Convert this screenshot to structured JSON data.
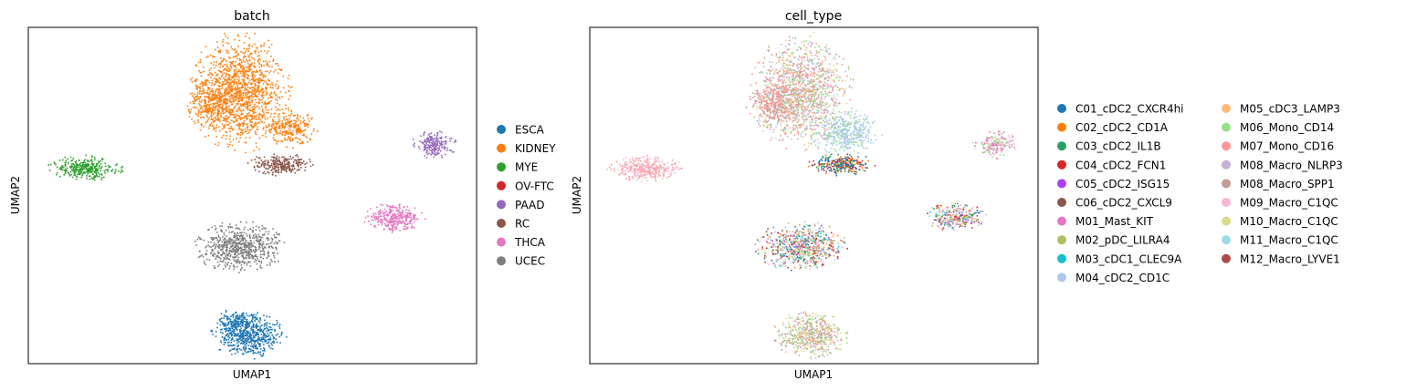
{
  "chart_data": [
    {
      "type": "scatter",
      "title": "batch",
      "xlabel": "UMAP1",
      "ylabel": "UMAP2",
      "xticks": "none",
      "yticks": "none",
      "grid": false,
      "legend": {
        "placement": "right",
        "columns": 1,
        "entries": [
          {
            "name": "ESCA",
            "color": "#1f77b4"
          },
          {
            "name": "KIDNEY",
            "color": "#ff7f0e"
          },
          {
            "name": "MYE",
            "color": "#2ca02c"
          },
          {
            "name": "OV-FTC",
            "color": "#d62728"
          },
          {
            "name": "PAAD",
            "color": "#9467bd"
          },
          {
            "name": "RC",
            "color": "#8c564b"
          },
          {
            "name": "THCA",
            "color": "#e377c2"
          },
          {
            "name": "UCEC",
            "color": "#7f7f7f"
          }
        ]
      }
    },
    {
      "type": "scatter",
      "title": "cell_type",
      "xlabel": "UMAP1",
      "ylabel": "UMAP2",
      "xticks": "none",
      "yticks": "none",
      "grid": false,
      "legend": {
        "placement": "right",
        "columns": 2,
        "entries": [
          {
            "name": "C01_cDC2_CXCR4hi",
            "color": "#1f77b4"
          },
          {
            "name": "C02_cDC2_CD1A",
            "color": "#ff7f0e"
          },
          {
            "name": "C03_cDC2_IL1B",
            "color": "#279e68"
          },
          {
            "name": "C04_cDC2_FCN1",
            "color": "#d62728"
          },
          {
            "name": "C05_cDC2_ISG15",
            "color": "#aa40fc"
          },
          {
            "name": "C06_cDC2_CXCL9",
            "color": "#8c564b"
          },
          {
            "name": "M01_Mast_KIT",
            "color": "#e377c2"
          },
          {
            "name": "M02_pDC_LILRA4",
            "color": "#b5bd61"
          },
          {
            "name": "M03_cDC1_CLEC9A",
            "color": "#17becf"
          },
          {
            "name": "M04_cDC2_CD1C",
            "color": "#aec7e8"
          },
          {
            "name": "M05_cDC3_LAMP3",
            "color": "#ffbb78"
          },
          {
            "name": "M06_Mono_CD14",
            "color": "#98df8a"
          },
          {
            "name": "M07_Mono_CD16",
            "color": "#ff9896"
          },
          {
            "name": "M08_Macro_NLRP3",
            "color": "#c5b0d5"
          },
          {
            "name": "M08_Macro_SPP1",
            "color": "#c49c94"
          },
          {
            "name": "M09_Macro_C1QC",
            "color": "#f7b6d2"
          },
          {
            "name": "M10_Macro_C1QC",
            "color": "#dbdb8d"
          },
          {
            "name": "M11_Macro_C1QC",
            "color": "#9edae5"
          },
          {
            "name": "M12_Macro_LYVE1",
            "color": "#ad494a"
          }
        ]
      }
    }
  ]
}
